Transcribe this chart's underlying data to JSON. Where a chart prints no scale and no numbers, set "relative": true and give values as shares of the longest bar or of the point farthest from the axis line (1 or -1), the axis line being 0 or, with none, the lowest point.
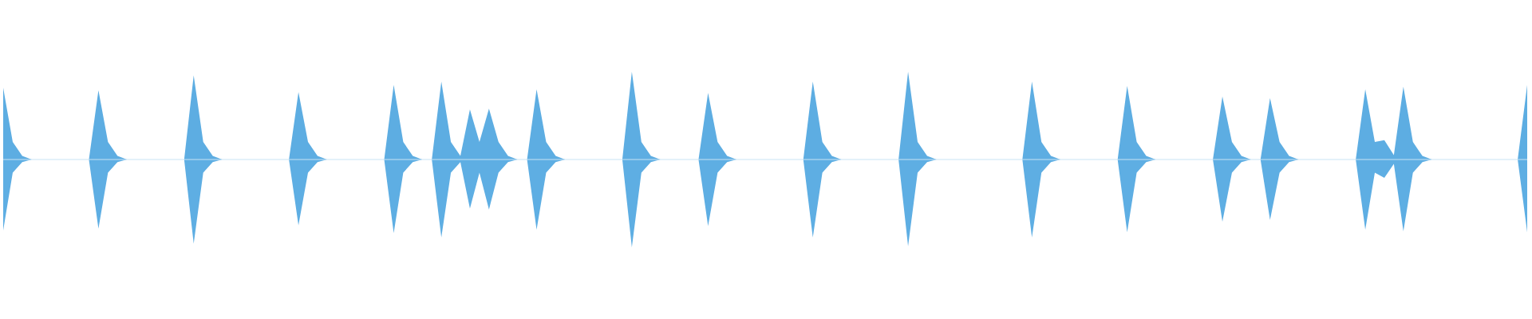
{
  "chart_data": {
    "type": "area",
    "relative": true,
    "ref_lines": [
      {
        "axis": "y",
        "value": 0,
        "color": "#c9e3f5"
      }
    ],
    "categories": [
      null,
      null,
      null,
      null,
      null,
      null,
      null,
      null,
      null,
      null,
      null,
      null,
      null,
      null,
      null,
      null,
      null,
      null,
      null,
      null,
      null,
      null,
      null,
      null,
      null,
      null,
      null,
      null,
      null,
      null,
      null,
      null,
      null,
      null,
      null,
      null,
      null,
      null,
      null,
      null,
      null,
      null,
      null,
      null,
      null,
      null,
      null,
      null,
      null,
      null,
      null,
      null,
      null,
      null,
      null,
      null,
      null,
      null,
      null,
      null,
      null,
      null,
      null,
      null,
      null,
      null,
      null,
      null,
      null,
      null,
      null,
      null,
      null,
      null,
      null,
      null,
      null,
      null,
      null,
      null,
      null,
      null,
      null,
      null,
      null,
      null,
      null,
      null,
      null,
      null,
      null,
      null,
      null,
      null,
      null,
      null,
      null,
      null,
      null,
      null,
      null,
      null,
      null,
      null,
      null,
      null,
      null,
      null,
      null,
      null,
      null,
      null,
      null,
      null,
      null,
      null,
      null,
      null,
      null,
      null,
      null,
      null,
      null,
      null,
      null,
      null,
      null,
      null,
      null,
      null,
      null,
      null,
      null,
      null,
      null,
      null,
      null,
      null,
      null,
      null,
      null,
      null,
      null,
      null,
      null,
      null,
      null,
      null,
      null,
      null,
      null,
      null,
      null,
      null,
      null,
      null,
      null,
      null,
      null,
      null,
      null
    ],
    "series": [
      {
        "color": "#5dade2",
        "values": [
          0.82,
          0.2,
          0.04,
          0,
          0,
          0,
          0,
          0,
          0,
          0,
          0.79,
          0.2,
          0.04,
          0,
          0,
          0,
          0,
          0,
          0,
          0,
          0.96,
          0.2,
          0.04,
          0,
          0,
          0,
          0,
          0,
          0,
          0,
          0,
          0.77,
          0.2,
          0.04,
          0,
          0,
          0,
          0,
          0,
          0,
          0,
          0.85,
          0.2,
          0.04,
          0,
          0,
          0.89,
          0.2,
          0.04,
          0.57,
          0.2,
          0.58,
          0.2,
          0.04,
          0,
          0,
          0.8,
          0.2,
          0.04,
          0,
          0,
          0,
          0,
          0,
          0,
          0,
          1,
          0.2,
          0.04,
          0,
          0,
          0,
          0,
          0,
          0.76,
          0.2,
          0.04,
          0,
          0,
          0,
          0,
          0,
          0,
          0,
          0,
          0.89,
          0.2,
          0.04,
          0,
          0,
          0,
          0,
          0,
          0,
          0,
          1,
          0.2,
          0.04,
          0,
          0,
          0,
          0,
          0,
          0,
          0,
          0,
          0,
          0,
          0.89,
          0.2,
          0.04,
          0,
          0,
          0,
          0,
          0,
          0,
          0,
          0.84,
          0.2,
          0.04,
          0,
          0,
          0,
          0,
          0,
          0,
          0,
          0.72,
          0.2,
          0.04,
          0,
          0,
          0.7,
          0.2,
          0.04,
          0,
          0,
          0,
          0,
          0,
          0,
          0,
          0.8,
          0.2,
          0.22,
          0.05,
          0.83,
          0.2,
          0.04,
          0,
          0,
          0,
          0,
          0,
          0,
          0,
          0,
          0,
          0,
          0.85
        ]
      },
      {
        "color": "#5eaee3",
        "values": [
          -0.81,
          -0.15,
          -0.03,
          0,
          0,
          0,
          0,
          0,
          0,
          0,
          -0.79,
          -0.15,
          -0.03,
          0,
          0,
          0,
          0,
          0,
          0,
          0,
          -0.96,
          -0.15,
          -0.03,
          0,
          0,
          0,
          0,
          0,
          0,
          0,
          0,
          -0.75,
          -0.15,
          -0.03,
          0,
          0,
          0,
          0,
          0,
          0,
          0,
          -0.84,
          -0.15,
          -0.03,
          0,
          0,
          -0.89,
          -0.15,
          -0.03,
          -0.56,
          -0.15,
          -0.57,
          -0.15,
          -0.03,
          0,
          0,
          -0.8,
          -0.15,
          -0.03,
          0,
          0,
          0,
          0,
          0,
          0,
          0,
          -1,
          -0.15,
          -0.03,
          0,
          0,
          0,
          0,
          0,
          -0.76,
          -0.15,
          -0.03,
          0,
          0,
          0,
          0,
          0,
          0,
          0,
          0,
          -0.89,
          -0.15,
          -0.03,
          0,
          0,
          0,
          0,
          0,
          0,
          0,
          -0.99,
          -0.15,
          -0.03,
          0,
          0,
          0,
          0,
          0,
          0,
          0,
          0,
          0,
          0,
          -0.89,
          -0.15,
          -0.03,
          0,
          0,
          0,
          0,
          0,
          0,
          0,
          -0.83,
          -0.15,
          -0.03,
          0,
          0,
          0,
          0,
          0,
          0,
          0,
          -0.71,
          -0.15,
          -0.03,
          0,
          0,
          -0.69,
          -0.15,
          -0.03,
          0,
          0,
          0,
          0,
          0,
          0,
          0,
          -0.8,
          -0.15,
          -0.21,
          -0.05,
          -0.82,
          -0.15,
          -0.03,
          0,
          0,
          0,
          0,
          0,
          0,
          0,
          0,
          0,
          0,
          -0.83
        ]
      }
    ]
  }
}
